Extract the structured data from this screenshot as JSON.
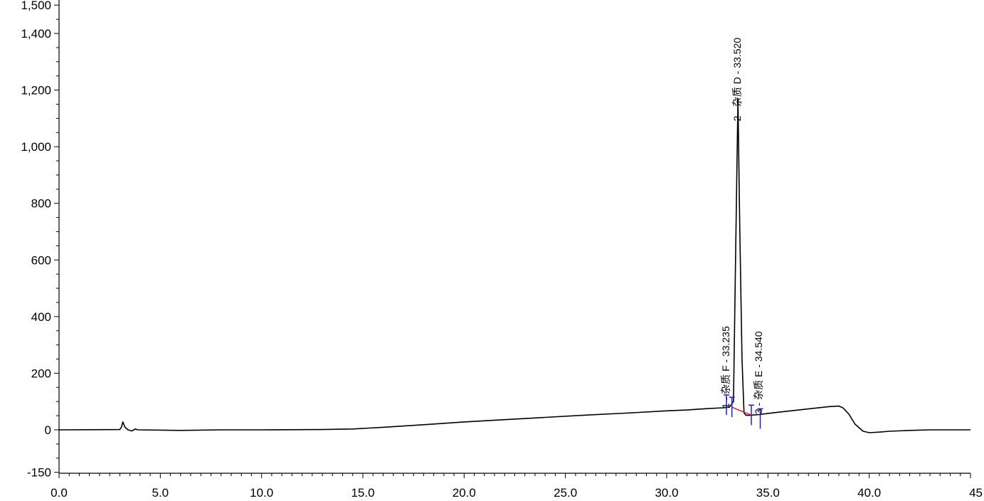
{
  "chart_data": {
    "type": "line",
    "title": "",
    "xlabel": "",
    "ylabel": "",
    "xlim": [
      0,
      45
    ],
    "ylim": [
      -150,
      1500
    ],
    "x_ticks": [
      {
        "value": 0,
        "label": "0.0"
      },
      {
        "value": 5,
        "label": "5.0"
      },
      {
        "value": 10,
        "label": "10.0"
      },
      {
        "value": 15,
        "label": "15.0"
      },
      {
        "value": 20,
        "label": "20.0"
      },
      {
        "value": 25,
        "label": "25.0"
      },
      {
        "value": 30,
        "label": "30.0"
      },
      {
        "value": 35,
        "label": "35.0"
      },
      {
        "value": 40,
        "label": "40.0"
      },
      {
        "value": 45,
        "label": "45"
      }
    ],
    "y_ticks": [
      {
        "value": -150,
        "label": "-150"
      },
      {
        "value": 0,
        "label": "0"
      },
      {
        "value": 200,
        "label": "200"
      },
      {
        "value": 400,
        "label": "400"
      },
      {
        "value": 600,
        "label": "600"
      },
      {
        "value": 800,
        "label": "800"
      },
      {
        "value": 1000,
        "label": "1,000"
      },
      {
        "value": 1200,
        "label": "1,200"
      },
      {
        "value": 1400,
        "label": "1,400"
      },
      {
        "value": 1500,
        "label": "1,500"
      }
    ],
    "grid": false,
    "colors": {
      "trace": "#000000",
      "baseline": "#e02020",
      "marker": "#1a1aff"
    },
    "series": [
      {
        "x": [
          0,
          3.0,
          3.08,
          3.15,
          3.25,
          3.4,
          3.6,
          3.75,
          3.9,
          6,
          8,
          10,
          13,
          14.5,
          16,
          18,
          20,
          22,
          24,
          26,
          28,
          30,
          31,
          32,
          32.8,
          33.1,
          33.3,
          33.4,
          33.52,
          33.6,
          33.72,
          33.82,
          33.9,
          34.0,
          34.2,
          34.6,
          35,
          36,
          37,
          38,
          38.5,
          38.7,
          39.0,
          39.3,
          39.7,
          40.0,
          40.5,
          41,
          42,
          43,
          44,
          45
        ],
        "y": [
          0,
          1,
          10,
          28,
          10,
          0,
          -4,
          3,
          0,
          -2,
          0,
          0,
          1,
          3,
          9,
          18,
          28,
          36,
          44,
          52,
          59,
          67,
          70,
          75,
          78,
          80,
          100,
          600,
          1170,
          750,
          250,
          60,
          52,
          51,
          52,
          54,
          58,
          66,
          74,
          82,
          84,
          78,
          55,
          20,
          -5,
          -10,
          -8,
          -5,
          -2,
          0,
          0,
          0
        ]
      }
    ],
    "peaks": [
      {
        "number": "1",
        "name": "杂质 F",
        "rt": "33.235",
        "label": "1 - 杂质 F - 33.235"
      },
      {
        "number": "2",
        "name": "杂质 D",
        "rt": "33.520",
        "label": "2 - 杂质 D - 33.520"
      },
      {
        "number": "3",
        "name": "杂质 E",
        "rt": "34.540",
        "label": "3 - 杂质 E - 34.540"
      }
    ],
    "peak_markers": [
      32.95,
      33.22,
      34.18,
      34.62
    ],
    "baseline_segment": {
      "x": [
        33.22,
        34.18
      ],
      "y": [
        80,
        52
      ]
    }
  }
}
